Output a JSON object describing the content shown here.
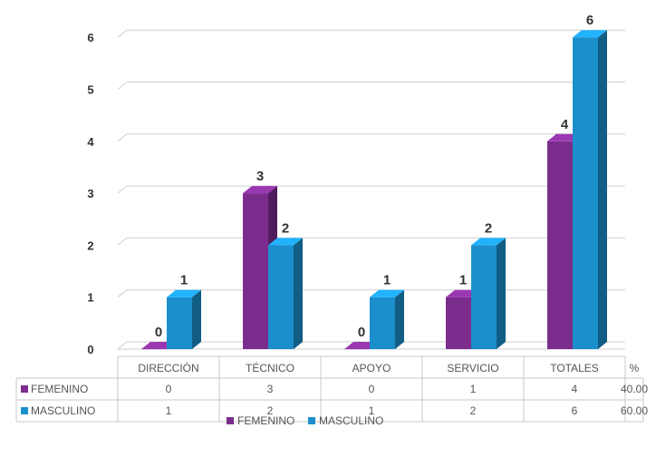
{
  "chart_data": {
    "type": "bar",
    "title": "",
    "categories": [
      "DIRECCIÓN",
      "TÉCNICO",
      "APOYO",
      "SERVICIO",
      "TOTALES"
    ],
    "series": [
      {
        "name": "FEMENINO",
        "values": [
          0,
          3,
          0,
          1,
          4
        ],
        "color": "#7B2D8E"
      },
      {
        "name": "MASCULINO",
        "values": [
          1,
          2,
          1,
          2,
          6
        ],
        "color": "#1B8FCB"
      }
    ],
    "ylim": [
      0,
      6
    ],
    "yticks": [
      0,
      1,
      2,
      3,
      4,
      5,
      6
    ],
    "grid": true,
    "legend": "bottom",
    "data_table": true,
    "percent_header": "%",
    "percent_values": [
      "40.00",
      "60.00"
    ]
  }
}
